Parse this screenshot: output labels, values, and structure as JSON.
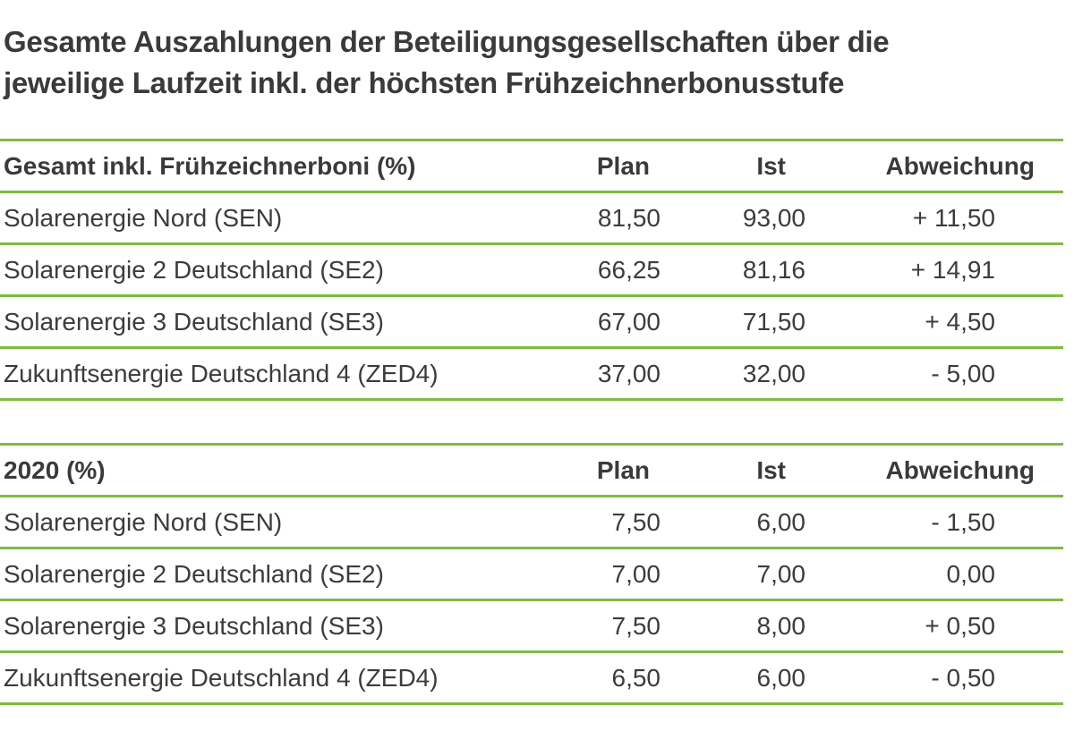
{
  "title": {
    "line1": "Gesamte Auszahlungen der Beteiligungsgesellschaften über die",
    "line2": "jeweilige Laufzeit inkl. der höchsten Frühzeichnerbonusstufe"
  },
  "tables": [
    {
      "header": {
        "name": "Gesamt inkl. Frühzeichnerboni (%)",
        "plan": "Plan",
        "ist": "Ist",
        "abweichung": "Abweichung"
      },
      "rows": [
        {
          "name": "Solarenergie Nord (SEN)",
          "plan": "81,50",
          "ist": "93,00",
          "abweichung": "+ 11,50"
        },
        {
          "name": "Solarenergie 2 Deutschland (SE2)",
          "plan": "66,25",
          "ist": "81,16",
          "abweichung": "+ 14,91"
        },
        {
          "name": "Solarenergie 3 Deutschland (SE3)",
          "plan": "67,00",
          "ist": "71,50",
          "abweichung": "+ 4,50"
        },
        {
          "name": "Zukunftsenergie Deutschland 4 (ZED4)",
          "plan": "37,00",
          "ist": "32,00",
          "abweichung": "- 5,00"
        }
      ]
    },
    {
      "header": {
        "name": "2020 (%)",
        "plan": "Plan",
        "ist": "Ist",
        "abweichung": "Abweichung"
      },
      "rows": [
        {
          "name": "Solarenergie Nord (SEN)",
          "plan": "7,50",
          "ist": "6,00",
          "abweichung": "- 1,50"
        },
        {
          "name": "Solarenergie 2 Deutschland (SE2)",
          "plan": "7,00",
          "ist": "7,00",
          "abweichung": "0,00"
        },
        {
          "name": "Solarenergie 3 Deutschland (SE3)",
          "plan": "7,50",
          "ist": "8,00",
          "abweichung": "+ 0,50"
        },
        {
          "name": "Zukunftsenergie Deutschland 4 (ZED4)",
          "plan": "6,50",
          "ist": "6,00",
          "abweichung": "- 0,50"
        }
      ]
    }
  ],
  "colors": {
    "rule": "#7dbb42",
    "text": "#3c3c3c"
  }
}
